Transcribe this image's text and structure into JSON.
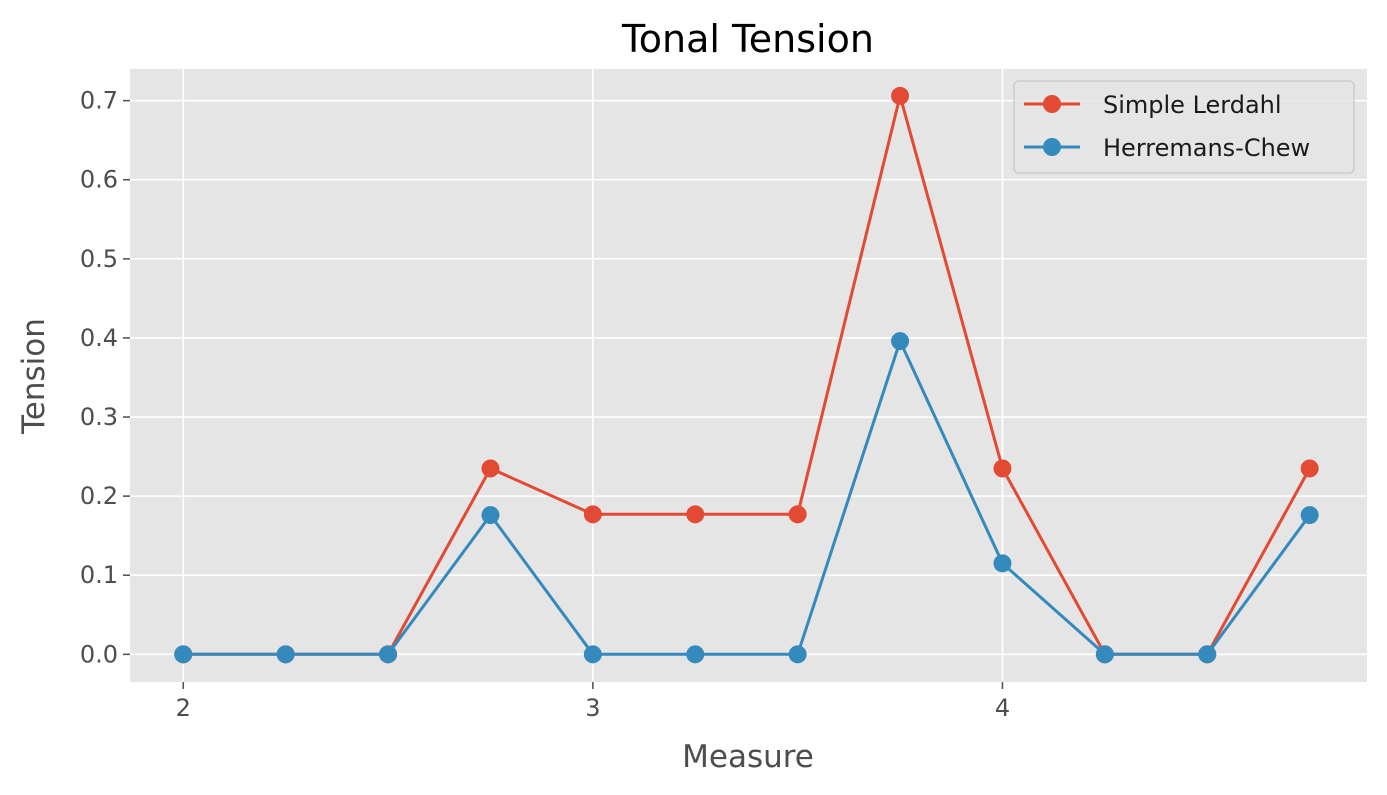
{
  "chart_data": {
    "type": "line",
    "title": "Tonal Tension",
    "xlabel": "Measure",
    "ylabel": "Tension",
    "x": [
      2,
      2.25,
      2.5,
      2.75,
      3,
      3.25,
      3.5,
      3.75,
      4,
      4.25,
      4.5,
      4.75
    ],
    "xlim": [
      1.87,
      4.89
    ],
    "ylim": [
      -0.035,
      0.74
    ],
    "xticks": [
      2,
      3,
      4
    ],
    "xtick_labels": [
      "2",
      "3",
      "4"
    ],
    "yticks": [
      0.0,
      0.1,
      0.2,
      0.3,
      0.4,
      0.5,
      0.6,
      0.7
    ],
    "ytick_labels": [
      "0.0",
      "0.1",
      "0.2",
      "0.3",
      "0.4",
      "0.5",
      "0.6",
      "0.7"
    ],
    "grid": true,
    "legend_position": "top-right",
    "series": [
      {
        "name": "Simple Lerdahl",
        "color": "#E24A33",
        "values": [
          0,
          0,
          0,
          0.235,
          0.177,
          0.177,
          0.177,
          0.706,
          0.235,
          0,
          0,
          0.235
        ]
      },
      {
        "name": "Herremans-Chew",
        "color": "#348ABD",
        "values": [
          0,
          0,
          0,
          0.176,
          0,
          0,
          0,
          0.396,
          0.115,
          0,
          0,
          0.176
        ]
      }
    ]
  }
}
